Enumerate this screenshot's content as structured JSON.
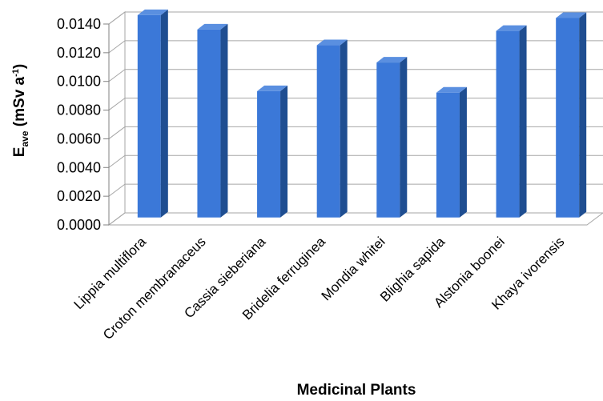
{
  "chart_data": {
    "type": "bar",
    "style": "3d-column",
    "categories": [
      "Lippia multiflora",
      "Croton membranaceus",
      "Cassia sieberiana",
      "Bridelia ferruginea",
      "Mondia whitei",
      "Blighia sapida",
      "Alstonia boonei",
      "Khaya ivorensis"
    ],
    "values": [
      0.0141,
      0.0131,
      0.0088,
      0.012,
      0.0108,
      0.0087,
      0.013,
      0.0139
    ],
    "xlabel": "Medicinal Plants",
    "ylabel": {
      "main": "E",
      "sub": "ave",
      "rest": " (mSv a",
      "sup": "-1",
      "close": ")"
    },
    "ylim": [
      0,
      0.014
    ],
    "yticks": [
      "0.0000",
      "0.0020",
      "0.0040",
      "0.0060",
      "0.0080",
      "0.0100",
      "0.0120",
      "0.0140"
    ],
    "grid": true,
    "bar_color": "#3b78d8",
    "bar_side_color": "#1f4e91",
    "bar_top_color": "#5a8fe0"
  }
}
